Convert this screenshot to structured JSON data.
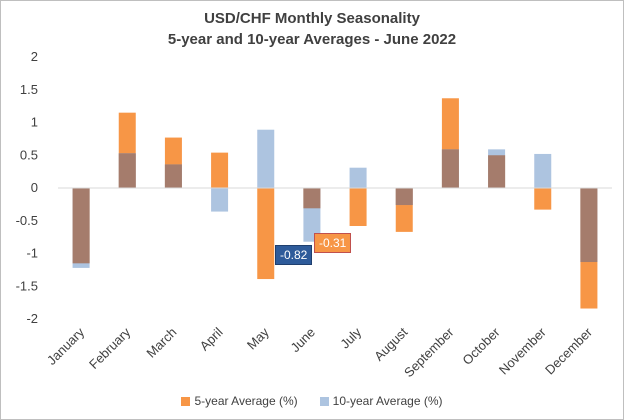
{
  "chart_data": {
    "type": "bar",
    "title": "USD/CHF Monthly Seasonality",
    "subtitle": "5-year and 10-year Averages - June 2022",
    "categories": [
      "January",
      "February",
      "March",
      "April",
      "May",
      "June",
      "July",
      "August",
      "September",
      "October",
      "November",
      "December"
    ],
    "series": [
      {
        "name": "5-year Average (%)",
        "color": "#f79646",
        "values": [
          -1.15,
          1.15,
          0.77,
          0.54,
          -1.39,
          -0.31,
          -0.58,
          -0.67,
          1.37,
          0.5,
          -0.33,
          -1.84
        ]
      },
      {
        "name": "10-year Average (%)",
        "color": "#adc4e0",
        "values": [
          -1.22,
          0.53,
          0.36,
          -0.36,
          0.89,
          -0.82,
          0.31,
          -0.26,
          0.59,
          0.59,
          0.52,
          -1.13
        ]
      }
    ],
    "overlap_color": "#a57c6c",
    "ylim": [
      -2,
      2
    ],
    "yticks": [
      "2",
      "1.5",
      "1",
      "0.5",
      "0",
      "-0.5",
      "-1",
      "-1.5",
      "-2"
    ],
    "ytick_values": [
      2,
      1.5,
      1,
      0.5,
      0,
      -0.5,
      -1,
      -1.5,
      -2
    ],
    "annotations": [
      {
        "label": "-0.82",
        "series": "10-year Average (%)",
        "category": "June",
        "bg": "#2e5b9a",
        "fg": "#ffffff",
        "border": "#1f3f6e"
      },
      {
        "label": "-0.31",
        "series": "5-year Average (%)",
        "category": "June",
        "bg": "#f79646",
        "fg": "#ffffff",
        "border": "#c0504d"
      }
    ]
  }
}
